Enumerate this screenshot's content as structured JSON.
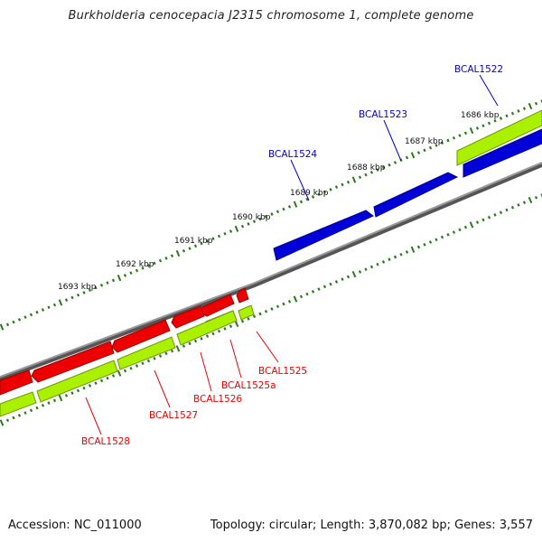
{
  "title": "Burkholderia cenocepacia J2315 chromosome 1, complete genome",
  "footer": {
    "accession": "Accession: NC_011000",
    "summary": "Topology: circular; Length: 3,870,082 bp; Genes: 3,557"
  },
  "colors": {
    "forward_gene": "#0000d8",
    "reverse_gene": "#ee0000",
    "forward_cds": "#99e800",
    "reverse_cds": "#aaf000",
    "pseudo_gene": "#a8a060",
    "backbone": "#7a7a7a",
    "ticks": "#2a7a1a"
  },
  "kbp_markers": [
    "1686 kbp",
    "1687 kbp",
    "1688 kbp",
    "1689 kbp",
    "1690 kbp",
    "1691 kbp",
    "1692 kbp",
    "1693 kbp"
  ],
  "genes": [
    {
      "label": "BCAL1522",
      "strand": "forward"
    },
    {
      "label": "BCAL1523",
      "strand": "forward"
    },
    {
      "label": "BCAL1524",
      "strand": "forward"
    },
    {
      "label": "BCAL1525",
      "strand": "reverse"
    },
    {
      "label": "BCAL1525a",
      "strand": "reverse"
    },
    {
      "label": "BCAL1526",
      "strand": "reverse"
    },
    {
      "label": "BCAL1527",
      "strand": "reverse"
    },
    {
      "label": "BCAL1528",
      "strand": "reverse"
    }
  ]
}
